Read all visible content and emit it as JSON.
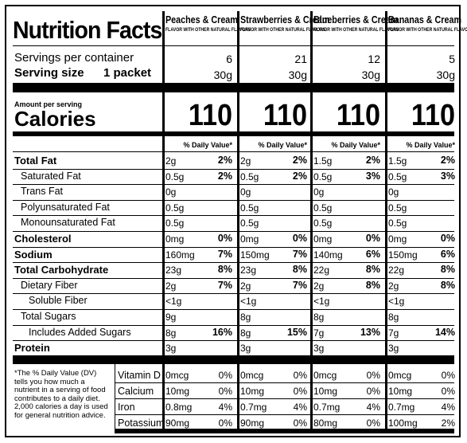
{
  "label": {
    "title": "Nutrition Facts",
    "servings_label": "Servings per container",
    "serving_size_label": "Serving size",
    "serving_size_value": "1 packet",
    "amount_per_serving": "Amount per serving",
    "calories_label": "Calories",
    "dv_header": "% Daily Value*",
    "nutrients": [
      {
        "name": "Total Fat",
        "bold": true,
        "indent": 0
      },
      {
        "name": "Saturated Fat",
        "bold": false,
        "indent": 1
      },
      {
        "name": "Trans Fat",
        "bold": false,
        "indent": 1
      },
      {
        "name": "Polyunsaturated Fat",
        "bold": false,
        "indent": 1
      },
      {
        "name": "Monounsaturated Fat",
        "bold": false,
        "indent": 1
      },
      {
        "name": "Cholesterol",
        "bold": true,
        "indent": 0
      },
      {
        "name": "Sodium",
        "bold": true,
        "indent": 0
      },
      {
        "name": "Total Carbohydrate",
        "bold": true,
        "indent": 0
      },
      {
        "name": "Dietary Fiber",
        "bold": false,
        "indent": 1
      },
      {
        "name": "Soluble Fiber",
        "bold": false,
        "indent": 2
      },
      {
        "name": "Total Sugars",
        "bold": false,
        "indent": 1
      },
      {
        "name": "Includes Added Sugars",
        "bold": false,
        "indent": 2
      },
      {
        "name": "Protein",
        "bold": true,
        "indent": 0
      }
    ],
    "footnote": "*The % Daily Value (DV) tells you how much a nutrient in a serving of food contributes to a daily diet. 2,000 calories a day is used for general nutrition advice.",
    "vitamins": [
      "Vitamin D",
      "Calcium",
      "Iron",
      "Potassium"
    ]
  },
  "flavors": [
    {
      "name": "Peaches & Cream",
      "subtitle": "FLAVOR WITH OTHER NATURAL FLAVORS",
      "servings": "6",
      "serving_size": "30g",
      "calories": "110",
      "amounts": [
        "2g",
        "0.5g",
        "0g",
        "0.5g",
        "0.5g",
        "0mg",
        "160mg",
        "23g",
        "2g",
        "<1g",
        "9g",
        "8g",
        "3g"
      ],
      "pcts": [
        "2%",
        "2%",
        "",
        "",
        "",
        "0%",
        "7%",
        "8%",
        "7%",
        "",
        "",
        "16%",
        ""
      ],
      "vit_amounts": [
        "0mcg",
        "10mg",
        "0.8mg",
        "90mg"
      ],
      "vit_pcts": [
        "0%",
        "0%",
        "4%",
        "0%"
      ]
    },
    {
      "name": "Strawberries & Cream",
      "subtitle": "FLAVOR WITH OTHER NATURAL FLAVORS",
      "servings": "21",
      "serving_size": "30g",
      "calories": "110",
      "amounts": [
        "2g",
        "0.5g",
        "0g",
        "0.5g",
        "0.5g",
        "0mg",
        "150mg",
        "23g",
        "2g",
        "<1g",
        "8g",
        "8g",
        "3g"
      ],
      "pcts": [
        "2%",
        "2%",
        "",
        "",
        "",
        "0%",
        "7%",
        "8%",
        "7%",
        "",
        "",
        "15%",
        ""
      ],
      "vit_amounts": [
        "0mcg",
        "10mg",
        "0.7mg",
        "90mg"
      ],
      "vit_pcts": [
        "0%",
        "0%",
        "4%",
        "0%"
      ]
    },
    {
      "name": "Blueberries & Cream",
      "subtitle": "FLAVOR WITH OTHER NATURAL FLAVORS",
      "servings": "12",
      "serving_size": "30g",
      "calories": "110",
      "amounts": [
        "1.5g",
        "0.5g",
        "0g",
        "0.5g",
        "0.5g",
        "0mg",
        "140mg",
        "22g",
        "2g",
        "<1g",
        "8g",
        "7g",
        "3g"
      ],
      "pcts": [
        "2%",
        "3%",
        "",
        "",
        "",
        "0%",
        "6%",
        "8%",
        "8%",
        "",
        "",
        "13%",
        ""
      ],
      "vit_amounts": [
        "0mcg",
        "10mg",
        "0.7mg",
        "80mg"
      ],
      "vit_pcts": [
        "0%",
        "0%",
        "4%",
        "0%"
      ]
    },
    {
      "name": "Bananas & Cream",
      "subtitle": "FLAVOR WITH OTHER NATURAL FLAVORS",
      "servings": "5",
      "serving_size": "30g",
      "calories": "110",
      "amounts": [
        "1.5g",
        "0.5g",
        "0g",
        "0.5g",
        "0.5g",
        "0mg",
        "150mg",
        "22g",
        "2g",
        "<1g",
        "8g",
        "7g",
        "3g"
      ],
      "pcts": [
        "2%",
        "3%",
        "",
        "",
        "",
        "0%",
        "6%",
        "8%",
        "8%",
        "",
        "",
        "14%",
        ""
      ],
      "vit_amounts": [
        "0mcg",
        "10mg",
        "0.7mg",
        "100mg"
      ],
      "vit_pcts": [
        "0%",
        "0%",
        "4%",
        "2%"
      ]
    }
  ]
}
